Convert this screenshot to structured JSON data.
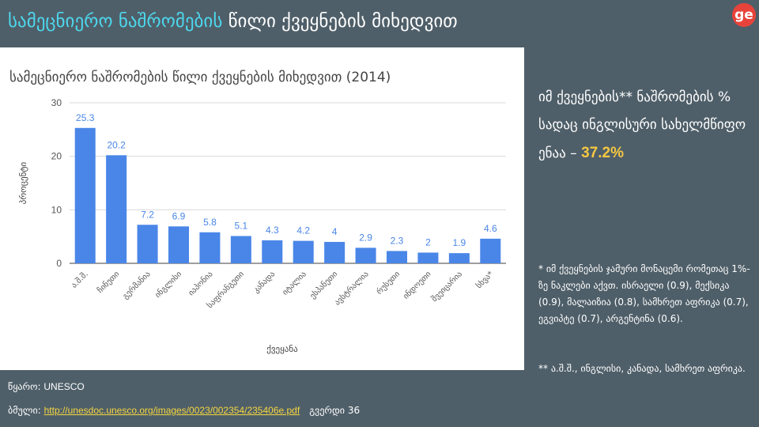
{
  "slide": {
    "title_accent": "სამეცნიერო ნაშრომების",
    "title_rest": "წილი ქვეყნების მიხედვით",
    "logo_text": "ge"
  },
  "colors": {
    "bar": "#4a86e8",
    "accent": "#4dd8ee",
    "highlight": "#f5c842",
    "background": "#4f5f69"
  },
  "chart_data": {
    "type": "bar",
    "title": "სამეცნიერო ნაშრომების წილი ქვეყნების მიხედვით (2014)",
    "xlabel": "ქვეყანა",
    "ylabel": "პროცენტი",
    "ylim": [
      0,
      30
    ],
    "yticks": [
      0,
      10,
      20,
      30
    ],
    "grid": true,
    "categories": [
      "ა.შ.შ.",
      "ჩინეთი",
      "გერმანია",
      "ინგლისი",
      "იაპონია",
      "საფრანგეთი",
      "კანადა",
      "იტალია",
      "ესპანეთი",
      "ავსტრალია",
      "რუსეთი",
      "ინდოეთი",
      "შვეიცარია",
      "სხვა*"
    ],
    "values": [
      25.3,
      20.2,
      7.2,
      6.9,
      5.8,
      5.1,
      4.3,
      4.2,
      4,
      2.9,
      2.3,
      2,
      1.9,
      4.6
    ],
    "value_labels": [
      "25.3",
      "20.2",
      "7.2",
      "6.9",
      "5.8",
      "5.1",
      "4.3",
      "4.2",
      "4",
      "2.9",
      "2.3",
      "2",
      "1.9",
      "4.6"
    ]
  },
  "stat": {
    "text": "იმ ქვეყნების** ნაშრომების % სადაც ინგლისური სახელმწიფო ენაა –",
    "value": "37.2%"
  },
  "notes": {
    "note1": "* იმ ქვეყნების ჯამური მონაცემი რომეთაც 1%-ზე ნაკლები აქვთ. ისრაელი (0.9), მექსიკა (0.9), მალაიზია (0.8), სამხრეთ აფრიკა (0.7), ეგვიპტე (0.7), არგენტინა (0.6).",
    "note2": "** ა.შ.შ., ინგლისი, კანადა, სამხრეთ აფრიკა."
  },
  "footer": {
    "source_label": "წყარო:",
    "source_value": "UNESCO",
    "link_label": "ბმული:",
    "link_url": "http://unesdoc.unesco.org/images/0023/002354/235406e.pdf",
    "page_label": "გვერდი 36"
  }
}
